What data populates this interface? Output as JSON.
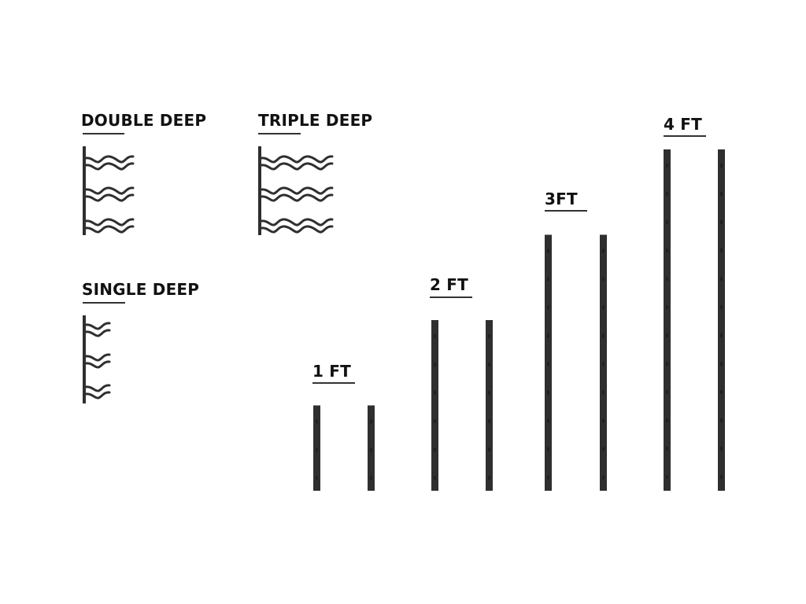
{
  "rack_types": [
    {
      "label": "DOUBLE DEEP",
      "rows": 3,
      "bottles_deep": 2
    },
    {
      "label": "TRIPLE DEEP",
      "rows": 3,
      "bottles_deep": 3
    },
    {
      "label": "SINGLE DEEP",
      "rows": 3,
      "bottles_deep": 1
    }
  ],
  "rail_lengths": [
    {
      "label": "1 FT",
      "feet": 1
    },
    {
      "label": "2 FT",
      "feet": 2
    },
    {
      "label": "3FT",
      "feet": 3
    },
    {
      "label": "4 FT",
      "feet": 4
    }
  ],
  "colors": {
    "rail": "#2f2f2f",
    "text": "#111111"
  }
}
